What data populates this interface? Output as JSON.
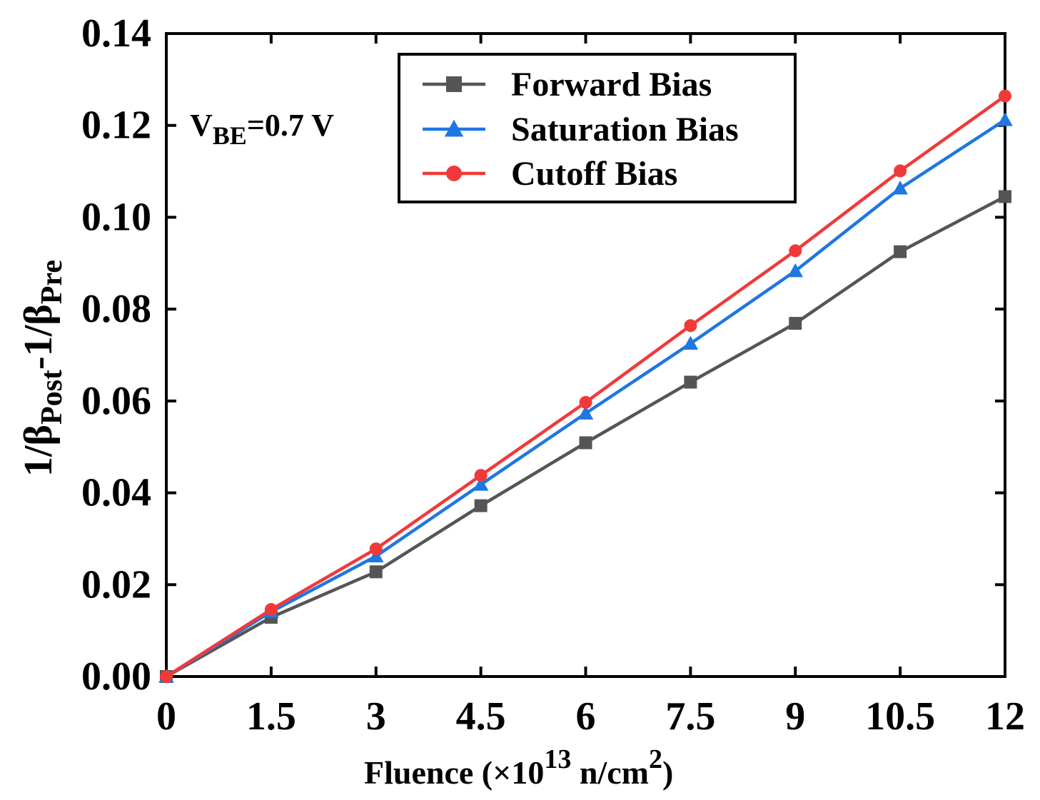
{
  "chart_data": {
    "type": "line",
    "title": "",
    "annotation": {
      "main": "V",
      "sub": "BE",
      "rest": "=0.7 V"
    },
    "xlabel": {
      "prefix": "Fluence (×10",
      "sup": "13",
      "mid": " n/cm",
      "sup2": "2",
      "suffix": ")"
    },
    "ylabel": {
      "p1": "1/β",
      "s1": "Post",
      "p2": "-1/β",
      "s2": "Pre"
    },
    "x": [
      0,
      1.5,
      3,
      4.5,
      6,
      7.5,
      9,
      10.5,
      12
    ],
    "xlim": [
      0,
      12
    ],
    "ylim": [
      0,
      0.14
    ],
    "xticks": [
      "0",
      "1.5",
      "3",
      "4.5",
      "6",
      "7.5",
      "9",
      "10.5",
      "12"
    ],
    "yticks": [
      "0.00",
      "0.02",
      "0.04",
      "0.06",
      "0.08",
      "0.10",
      "0.12",
      "0.14"
    ],
    "legend_position": "top-right",
    "series": [
      {
        "name": "Forward Bias",
        "color": "#555555",
        "marker": "square",
        "values": [
          0.0,
          0.0129,
          0.0228,
          0.0372,
          0.0509,
          0.0641,
          0.0769,
          0.0925,
          0.1045
        ]
      },
      {
        "name": "Saturation Bias",
        "color": "#1f77e0",
        "marker": "triangle",
        "values": [
          0.0,
          0.0141,
          0.0262,
          0.0418,
          0.0573,
          0.0725,
          0.0883,
          0.1063,
          0.1212
        ]
      },
      {
        "name": "Cutoff Bias",
        "color": "#f03a3a",
        "marker": "circle",
        "values": [
          0.0,
          0.0146,
          0.0278,
          0.0438,
          0.0597,
          0.0764,
          0.0927,
          0.1101,
          0.1264
        ]
      }
    ]
  }
}
